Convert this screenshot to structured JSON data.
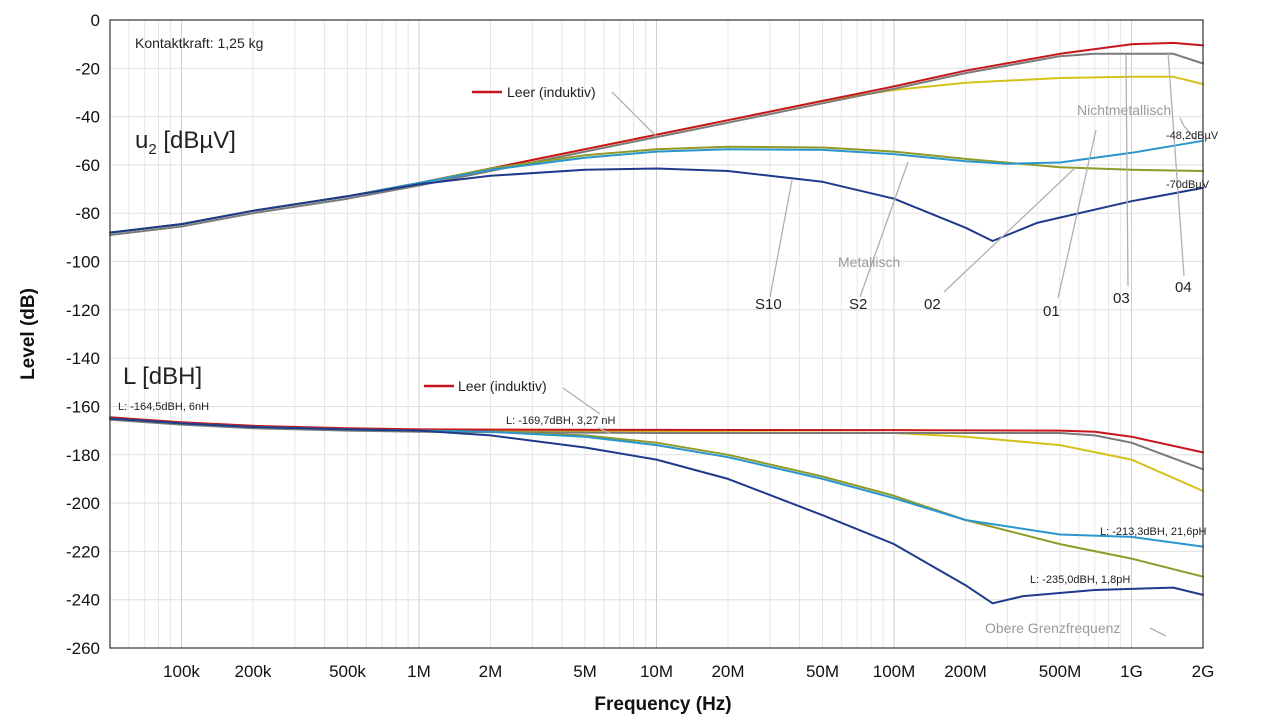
{
  "chart_data": {
    "type": "line",
    "xlabel": "Frequency (Hz)",
    "ylabel": "Level (dB)",
    "x_scale": "log",
    "xlim": [
      50000,
      2000000000
    ],
    "ylim": [
      -260,
      0
    ],
    "grid": true,
    "x_tick_values": [
      100000,
      200000,
      500000,
      1000000,
      2000000,
      5000000,
      10000000,
      20000000,
      50000000,
      100000000,
      200000000,
      500000000,
      1000000000,
      2000000000
    ],
    "x_tick_labels": [
      "100k",
      "200k",
      "500k",
      "1M",
      "2M",
      "5M",
      "10M",
      "20M",
      "50M",
      "100M",
      "200M",
      "500M",
      "1G",
      "2G"
    ],
    "y_ticks": [
      0,
      -20,
      -40,
      -60,
      -80,
      -100,
      -120,
      -140,
      -160,
      -180,
      -200,
      -220,
      -240,
      -260
    ],
    "series": [
      {
        "group": "u2",
        "color": "#d4c21a",
        "values": [
          [
            50000,
            -88
          ],
          [
            100000,
            -84.5
          ],
          [
            200000,
            -79
          ],
          [
            500000,
            -73
          ],
          [
            1000000,
            -67.5
          ],
          [
            2000000,
            -61.5
          ],
          [
            5000000,
            -53.5
          ],
          [
            10000000,
            -47.5
          ],
          [
            20000000,
            -41.5
          ],
          [
            50000000,
            -33.5
          ],
          [
            100000000,
            -29
          ],
          [
            200000000,
            -26
          ],
          [
            500000000,
            -24
          ],
          [
            1000000000,
            -23.5
          ],
          [
            1500000000,
            -23.5
          ],
          [
            2000000000,
            -26.5
          ]
        ]
      },
      {
        "group": "u2",
        "color": "#7a7a7a",
        "values": [
          [
            50000,
            -89
          ],
          [
            100000,
            -85.5
          ],
          [
            200000,
            -80
          ],
          [
            500000,
            -74
          ],
          [
            1000000,
            -68.5
          ],
          [
            2000000,
            -62.5
          ],
          [
            5000000,
            -54.5
          ],
          [
            10000000,
            -48.5
          ],
          [
            20000000,
            -42.5
          ],
          [
            50000000,
            -34.5
          ],
          [
            100000000,
            -28.5
          ],
          [
            200000000,
            -22
          ],
          [
            500000000,
            -15
          ],
          [
            700000000,
            -14
          ],
          [
            1500000000,
            -14
          ],
          [
            2000000000,
            -18
          ]
        ]
      },
      {
        "group": "u2",
        "color": "#c8151b",
        "values": [
          [
            50000,
            -88
          ],
          [
            100000,
            -84.5
          ],
          [
            200000,
            -79
          ],
          [
            500000,
            -73
          ],
          [
            1000000,
            -67.5
          ],
          [
            2000000,
            -61.5
          ],
          [
            5000000,
            -53.5
          ],
          [
            10000000,
            -47.5
          ],
          [
            20000000,
            -41.5
          ],
          [
            50000000,
            -33.5
          ],
          [
            100000000,
            -27.5
          ],
          [
            200000000,
            -21
          ],
          [
            500000000,
            -14
          ],
          [
            1000000000,
            -10
          ],
          [
            1500000000,
            -9.5
          ],
          [
            2000000000,
            -10.5
          ]
        ]
      },
      {
        "group": "u2",
        "color": "#8f9a2a",
        "values": [
          [
            50000,
            -88
          ],
          [
            100000,
            -84.5
          ],
          [
            200000,
            -79
          ],
          [
            500000,
            -73
          ],
          [
            1000000,
            -67.5
          ],
          [
            2000000,
            -61.5
          ],
          [
            5000000,
            -56
          ],
          [
            10000000,
            -53.5
          ],
          [
            20000000,
            -52.5
          ],
          [
            50000000,
            -52.8
          ],
          [
            100000000,
            -54.5
          ],
          [
            200000000,
            -57.5
          ],
          [
            500000000,
            -61
          ],
          [
            1000000000,
            -62
          ],
          [
            2000000000,
            -62.5
          ]
        ]
      },
      {
        "group": "u2",
        "color": "#2a96cc",
        "values": [
          [
            50000,
            -88
          ],
          [
            100000,
            -84.5
          ],
          [
            200000,
            -79
          ],
          [
            500000,
            -73
          ],
          [
            1000000,
            -67.5
          ],
          [
            2000000,
            -62
          ],
          [
            5000000,
            -57
          ],
          [
            10000000,
            -54.5
          ],
          [
            20000000,
            -53.5
          ],
          [
            50000000,
            -53.8
          ],
          [
            100000000,
            -55.5
          ],
          [
            200000000,
            -58.5
          ],
          [
            300000000,
            -59.5
          ],
          [
            500000000,
            -59
          ],
          [
            1000000000,
            -55
          ],
          [
            2000000000,
            -50
          ]
        ]
      },
      {
        "group": "u2",
        "color": "#1f3a8a",
        "values": [
          [
            50000,
            -88
          ],
          [
            100000,
            -84.5
          ],
          [
            200000,
            -79
          ],
          [
            500000,
            -73
          ],
          [
            1000000,
            -68
          ],
          [
            2000000,
            -64.5
          ],
          [
            5000000,
            -62
          ],
          [
            10000000,
            -61.5
          ],
          [
            20000000,
            -62.5
          ],
          [
            50000000,
            -67
          ],
          [
            100000000,
            -74
          ],
          [
            200000000,
            -86
          ],
          [
            260000000,
            -91.5
          ],
          [
            400000000,
            -84
          ],
          [
            1000000000,
            -75
          ],
          [
            2000000000,
            -69.5
          ]
        ]
      },
      {
        "group": "L",
        "color": "#d4c21a",
        "values": [
          [
            50000,
            -165
          ],
          [
            100000,
            -167
          ],
          [
            200000,
            -168.5
          ],
          [
            500000,
            -169.5
          ],
          [
            1000000,
            -170
          ],
          [
            10000000,
            -170.5
          ],
          [
            100000000,
            -171
          ],
          [
            200000000,
            -172.5
          ],
          [
            500000000,
            -176
          ],
          [
            1000000000,
            -182
          ],
          [
            2000000000,
            -195
          ]
        ]
      },
      {
        "group": "L",
        "color": "#7a7a7a",
        "values": [
          [
            50000,
            -165.5
          ],
          [
            100000,
            -167.5
          ],
          [
            200000,
            -169
          ],
          [
            500000,
            -170
          ],
          [
            1000000,
            -170.5
          ],
          [
            10000000,
            -171
          ],
          [
            100000000,
            -171
          ],
          [
            500000000,
            -171
          ],
          [
            700000000,
            -172
          ],
          [
            1000000000,
            -175
          ],
          [
            2000000000,
            -186
          ]
        ]
      },
      {
        "group": "L",
        "color": "#c8151b",
        "values": [
          [
            50000,
            -164.5
          ],
          [
            100000,
            -166.5
          ],
          [
            200000,
            -168
          ],
          [
            500000,
            -169
          ],
          [
            1000000,
            -169.5
          ],
          [
            10000000,
            -169.7
          ],
          [
            100000000,
            -169.8
          ],
          [
            500000000,
            -170
          ],
          [
            700000000,
            -170.5
          ],
          [
            1000000000,
            -172.5
          ],
          [
            2000000000,
            -179
          ]
        ]
      },
      {
        "group": "L",
        "color": "#8f9a2a",
        "values": [
          [
            50000,
            -165
          ],
          [
            100000,
            -167
          ],
          [
            200000,
            -168.5
          ],
          [
            500000,
            -169.5
          ],
          [
            1000000,
            -170
          ],
          [
            2000000,
            -170.5
          ],
          [
            5000000,
            -172
          ],
          [
            10000000,
            -175
          ],
          [
            20000000,
            -180
          ],
          [
            50000000,
            -189
          ],
          [
            100000000,
            -197
          ],
          [
            200000000,
            -207
          ],
          [
            500000000,
            -217
          ],
          [
            1000000000,
            -223
          ],
          [
            2000000000,
            -230.5
          ]
        ]
      },
      {
        "group": "L",
        "color": "#2a96cc",
        "values": [
          [
            50000,
            -165
          ],
          [
            100000,
            -167
          ],
          [
            200000,
            -168.5
          ],
          [
            500000,
            -169.5
          ],
          [
            1000000,
            -170
          ],
          [
            2000000,
            -170.5
          ],
          [
            5000000,
            -172.5
          ],
          [
            10000000,
            -176
          ],
          [
            20000000,
            -181
          ],
          [
            50000000,
            -190
          ],
          [
            100000000,
            -198
          ],
          [
            200000000,
            -207
          ],
          [
            500000000,
            -213
          ],
          [
            1000000000,
            -214
          ],
          [
            2000000000,
            -218
          ]
        ]
      },
      {
        "group": "L",
        "color": "#1f3a8a",
        "values": [
          [
            50000,
            -165
          ],
          [
            100000,
            -167
          ],
          [
            200000,
            -168.5
          ],
          [
            500000,
            -169.5
          ],
          [
            1000000,
            -170
          ],
          [
            2000000,
            -172
          ],
          [
            5000000,
            -177
          ],
          [
            10000000,
            -182
          ],
          [
            20000000,
            -190
          ],
          [
            50000000,
            -205
          ],
          [
            100000000,
            -217
          ],
          [
            200000000,
            -234
          ],
          [
            260000000,
            -241.5
          ],
          [
            350000000,
            -238.5
          ],
          [
            700000000,
            -236
          ],
          [
            1500000000,
            -235
          ],
          [
            2000000000,
            -238
          ]
        ]
      }
    ],
    "annotations": {
      "kontaktkraft": "Kontaktkraft: 1,25 kg",
      "u2_symbol": "u",
      "u2_subscript": "2",
      "u2_unit": " [dBµV]",
      "l_label": "L [dBH]",
      "leer_u2": "Leer (induktiv)",
      "leer_l": "Leer (induktiv)",
      "nichtmetallisch": "Nichtmetallisch",
      "metallisch": "Metallisch",
      "s10": "S10",
      "s2": "S2",
      "c02": "02",
      "c01": "01",
      "c03": "03",
      "c04": "04",
      "val_48": "-48,2dBµV",
      "val_70": "-70dBµV",
      "l_164": "L: -164,5dBH, 6nH",
      "l_169": "L: -169,7dBH, 3,27 nH",
      "l_213": "L: -213,3dBH, 21,6pH",
      "l_235": "L: -235,0dBH, 1,8pH",
      "obere": "Obere Grenzfrequenz"
    }
  }
}
